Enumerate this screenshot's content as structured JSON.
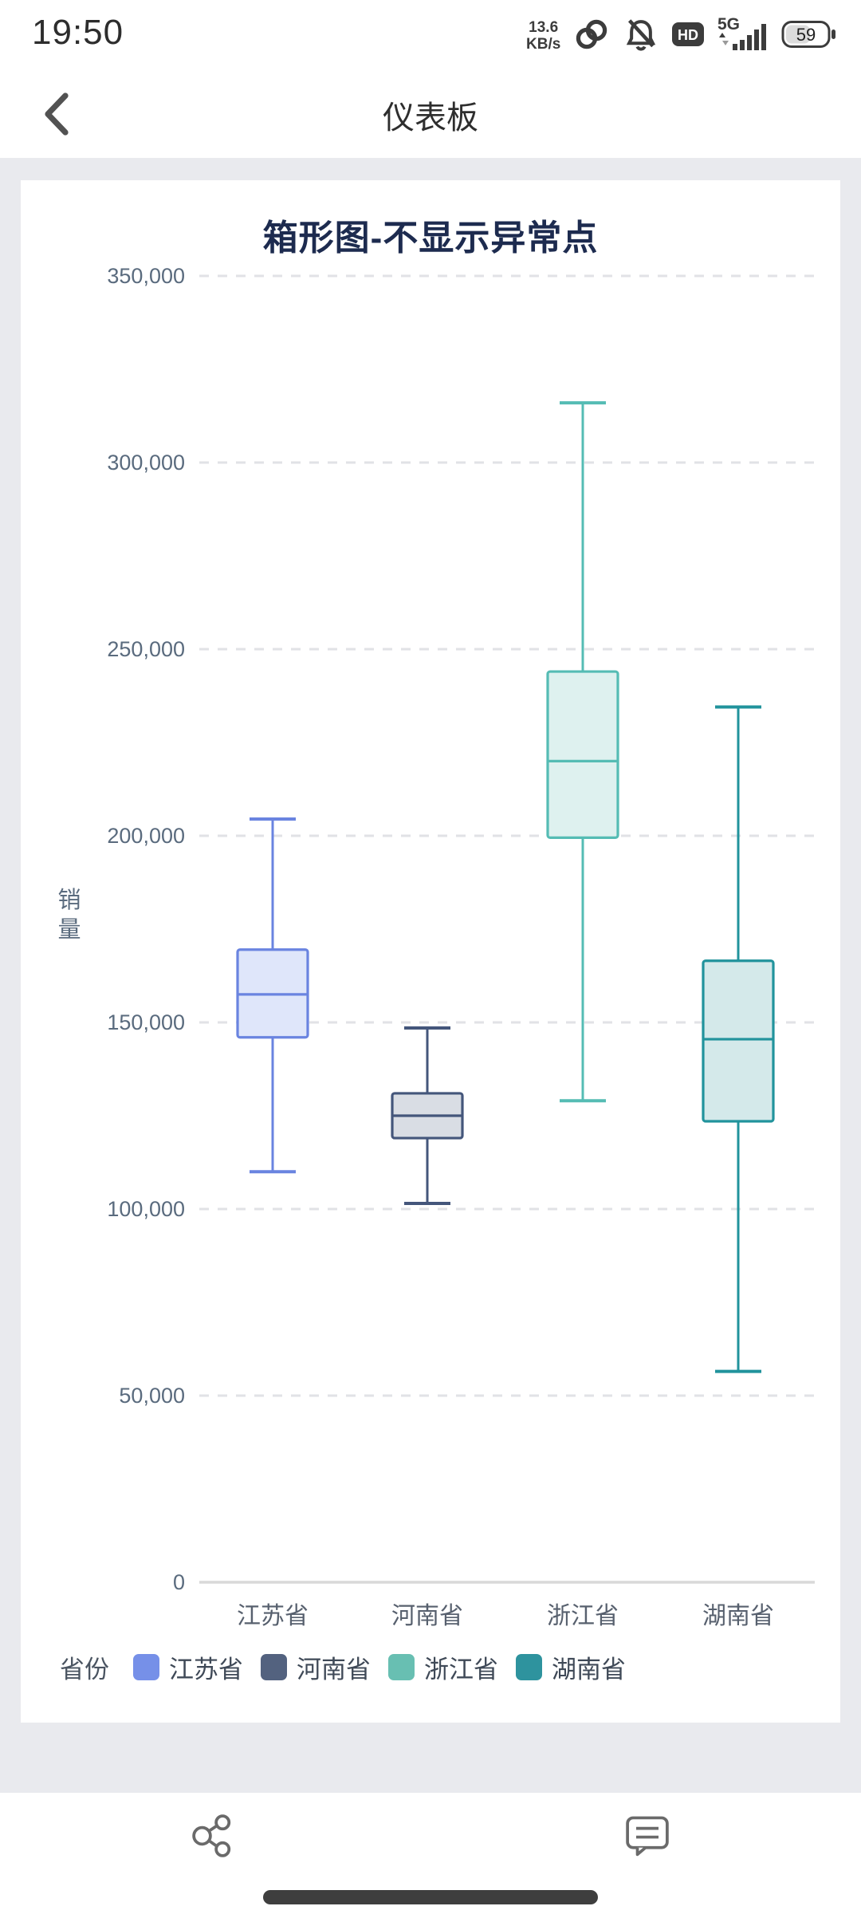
{
  "status_bar": {
    "time": "19:50",
    "network_speed_line1": "13.6",
    "network_speed_line2": "KB/s",
    "hd_label": "HD",
    "network_type": "5G",
    "battery_level": "59",
    "icon_color": "#3c3c3c"
  },
  "header": {
    "title": "仪表板"
  },
  "chart_card": {
    "title": "箱形图-不显示异常点"
  },
  "chart_data": {
    "type": "boxplot",
    "title": "箱形图-不显示异常点",
    "ylabel": "销量",
    "xlabel": "省份",
    "outliers_shown": false,
    "ylim": [
      0,
      350000
    ],
    "grid": "horizontal dashed gridlines, solid baseline at 0",
    "y_ticks": [
      {
        "v": 0,
        "label": "0"
      },
      {
        "v": 50000,
        "label": "50,000"
      },
      {
        "v": 100000,
        "label": "100,000"
      },
      {
        "v": 150000,
        "label": "150,000"
      },
      {
        "v": 200000,
        "label": "200,000"
      },
      {
        "v": 250000,
        "label": "250,000"
      },
      {
        "v": 300000,
        "label": "300,000"
      },
      {
        "v": 350000,
        "label": "350,000"
      }
    ],
    "categories": [
      "江苏省",
      "河南省",
      "浙江省",
      "湖南省"
    ],
    "series": [
      {
        "name": "江苏省",
        "min": 110000,
        "q1": 146000,
        "median": 157500,
        "q3": 169500,
        "max": 204500,
        "stroke": "#6A84E0",
        "fill": "#DFE6FA"
      },
      {
        "name": "河南省",
        "min": 101500,
        "q1": 119000,
        "median": 125000,
        "q3": 131000,
        "max": 148500,
        "stroke": "#44567B",
        "fill": "#D9DDE4"
      },
      {
        "name": "浙江省",
        "min": 129000,
        "q1": 199500,
        "median": 220000,
        "q3": 244000,
        "max": 316000,
        "stroke": "#55BCB4",
        "fill": "#DEF1EF"
      },
      {
        "name": "湖南省",
        "min": 56500,
        "q1": 123500,
        "median": 145500,
        "q3": 166500,
        "max": 234500,
        "stroke": "#21939C",
        "fill": "#D4E9EA"
      }
    ],
    "legend": {
      "title": "省份",
      "position": "bottom",
      "items": [
        {
          "label": "江苏省",
          "color": "#7690E8"
        },
        {
          "label": "河南省",
          "color": "#53627F"
        },
        {
          "label": "浙江省",
          "color": "#68BFB2"
        },
        {
          "label": "湖南省",
          "color": "#2E939E"
        }
      ]
    },
    "style": {
      "grid_color": "#E1E2E6",
      "axis_color": "#D9D9D9",
      "tick_label_color": "#5A6B7E",
      "x_label_color": "#57606E"
    }
  },
  "toolbar": {
    "icons": [
      "share",
      "comment"
    ]
  }
}
